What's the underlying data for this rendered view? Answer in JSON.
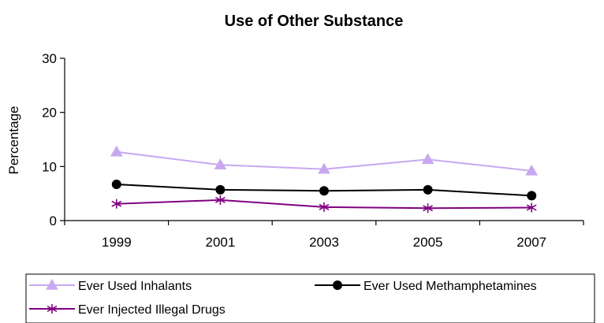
{
  "chart_data": {
    "type": "line",
    "title": "Use of Other Substance",
    "xlabel": "",
    "ylabel": "Percentage",
    "categories": [
      "1999",
      "2001",
      "2003",
      "2005",
      "2007"
    ],
    "ylim": [
      0,
      30
    ],
    "yticks": [
      0,
      10,
      20,
      30
    ],
    "grid": false,
    "legend_position": "bottom",
    "series": [
      {
        "name": "Ever Used Inhalants",
        "values": [
          12.7,
          10.3,
          9.5,
          11.3,
          9.2
        ],
        "color": "#c8a8f0",
        "marker": "triangle"
      },
      {
        "name": "Ever Used Methamphetamines",
        "values": [
          6.7,
          5.7,
          5.5,
          5.7,
          4.6
        ],
        "color": "#000000",
        "marker": "circle"
      },
      {
        "name": "Ever Injected Illegal Drugs",
        "values": [
          3.1,
          3.8,
          2.5,
          2.3,
          2.4
        ],
        "color": "#800080",
        "marker": "asterisk"
      }
    ]
  }
}
